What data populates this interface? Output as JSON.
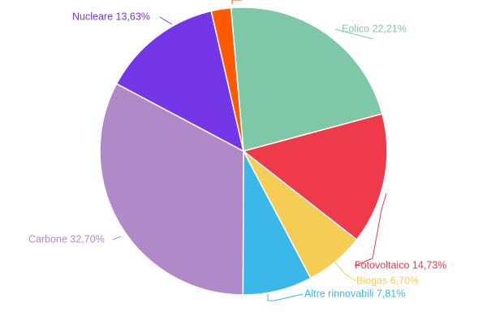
{
  "chart_data": {
    "type": "pie",
    "title": "",
    "start_angle_deg": -5,
    "direction": "clockwise",
    "legend": "none",
    "slices": [
      {
        "label": "Eolico",
        "value": 22.21,
        "display": "Eolico 22,21%",
        "color": "#7ec8a8"
      },
      {
        "label": "Fotovoltaico",
        "value": 14.73,
        "display": "Fotovoltaico 14,73%",
        "color": "#ef3a4b"
      },
      {
        "label": "Biogas",
        "value": 6.7,
        "display": "Biogas 6,70%",
        "color": "#f5cd54"
      },
      {
        "label": "Altre rinnovabili",
        "value": 7.81,
        "display": "Altre rinnovabili 7,81%",
        "color": "#3ab8ea"
      },
      {
        "label": "Carbone",
        "value": 32.7,
        "display": "Carbone 32,70%",
        "color": "#b08ac8"
      },
      {
        "label": "Nucleare",
        "value": 13.63,
        "display": "Nucleare 13,63%",
        "color": "#7436e6"
      },
      {
        "label": "",
        "value": 2.22,
        "display": "",
        "color": "#ff5a00"
      }
    ]
  }
}
